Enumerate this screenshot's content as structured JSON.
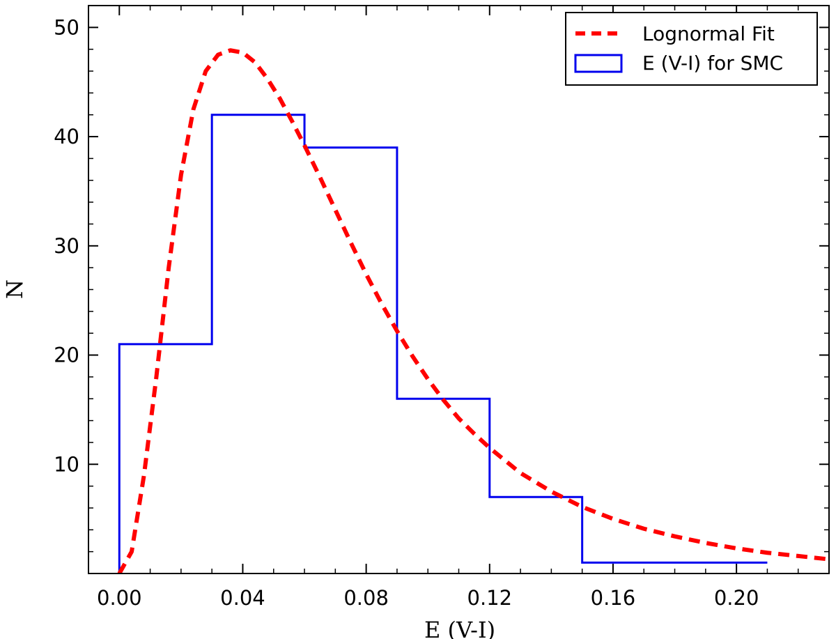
{
  "chart_data": {
    "type": "bar",
    "xlabel": "E (V-I)",
    "ylabel": "N",
    "xlim": [
      -0.01,
      0.23
    ],
    "ylim": [
      0,
      52
    ],
    "x_ticks": [
      "0.00",
      "0.04",
      "0.08",
      "0.12",
      "0.16",
      "0.20"
    ],
    "x_tick_values": [
      0.0,
      0.04,
      0.08,
      0.12,
      0.16,
      0.2
    ],
    "y_ticks": [
      "10",
      "20",
      "30",
      "40",
      "50"
    ],
    "y_tick_values": [
      10,
      20,
      30,
      40,
      50
    ],
    "grid": false,
    "legend_placement": "top-right",
    "series": [
      {
        "name": "Lognormal Fit",
        "kind": "line",
        "style": "dashed",
        "color": "#ff0000",
        "x": [
          0.0,
          0.004,
          0.008,
          0.012,
          0.016,
          0.02,
          0.024,
          0.028,
          0.032,
          0.036,
          0.04,
          0.044,
          0.048,
          0.052,
          0.056,
          0.06,
          0.065,
          0.07,
          0.075,
          0.08,
          0.085,
          0.09,
          0.095,
          0.1,
          0.105,
          0.11,
          0.115,
          0.12,
          0.13,
          0.14,
          0.15,
          0.16,
          0.17,
          0.18,
          0.19,
          0.2,
          0.21,
          0.22,
          0.23
        ],
        "y": [
          0.0,
          2.0,
          9.0,
          18.0,
          28.0,
          36.5,
          42.5,
          46.0,
          47.5,
          47.9,
          47.7,
          46.8,
          45.3,
          43.5,
          41.4,
          39.2,
          36.3,
          33.3,
          30.3,
          27.4,
          24.7,
          22.2,
          19.9,
          17.8,
          15.9,
          14.2,
          12.8,
          11.5,
          9.2,
          7.5,
          6.1,
          5.0,
          4.1,
          3.4,
          2.8,
          2.3,
          1.9,
          1.6,
          1.3
        ]
      },
      {
        "name": "E (V-I) for SMC",
        "kind": "step-histogram",
        "color": "#0000ee",
        "bin_edges": [
          0.0,
          0.03,
          0.06,
          0.09,
          0.12,
          0.15,
          0.21
        ],
        "values": [
          21,
          42,
          39,
          16,
          7,
          1
        ]
      }
    ]
  }
}
